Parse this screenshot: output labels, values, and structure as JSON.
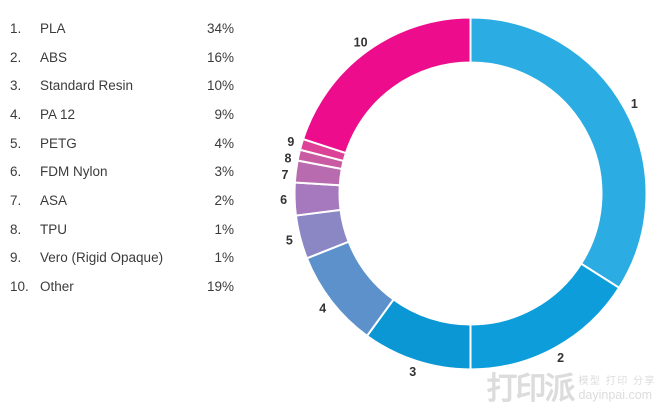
{
  "chart_data": {
    "type": "pie",
    "subtype": "donut",
    "title": "",
    "categories": [
      "PLA",
      "ABS",
      "Standard Resin",
      "PA 12",
      "PETG",
      "FDM Nylon",
      "ASA",
      "TPU",
      "Vero (Rigid Opaque)",
      "Other"
    ],
    "values": [
      34,
      16,
      10,
      9,
      4,
      3,
      2,
      1,
      1,
      19
    ],
    "unit": "%",
    "slice_labels": [
      "1",
      "2",
      "3",
      "4",
      "5",
      "6",
      "7",
      "8",
      "9",
      "10"
    ],
    "colors": [
      "#2BACE2",
      "#0D9DDB",
      "#0A97D4",
      "#5C91CB",
      "#8A87C4",
      "#A678BE",
      "#B96BAF",
      "#C95BA2",
      "#DC4295",
      "#EC0C8C"
    ],
    "start_angle_deg": 0,
    "direction": "clockwise",
    "legend_position": "left",
    "slice_divider_color": "#ffffff",
    "label_color": "#333333"
  },
  "legend": {
    "items": [
      {
        "rank": "1.",
        "name": "PLA",
        "pct": "34%"
      },
      {
        "rank": "2.",
        "name": "ABS",
        "pct": "16%"
      },
      {
        "rank": "3.",
        "name": "Standard Resin",
        "pct": "10%"
      },
      {
        "rank": "4.",
        "name": "PA 12",
        "pct": "9%"
      },
      {
        "rank": "5.",
        "name": "PETG",
        "pct": "4%"
      },
      {
        "rank": "6.",
        "name": "FDM Nylon",
        "pct": "3%"
      },
      {
        "rank": "7.",
        "name": "ASA",
        "pct": "2%"
      },
      {
        "rank": "8.",
        "name": "TPU",
        "pct": "1%"
      },
      {
        "rank": "9.",
        "name": "Vero (Rigid Opaque)",
        "pct": "1%"
      },
      {
        "rank": "10.",
        "name": "Other",
        "pct": "19%"
      }
    ]
  },
  "watermark": {
    "logo": "打印派",
    "line1": "模型 打印 分享",
    "line2": "dayinpai.com",
    "color": "#dcdcdc"
  }
}
